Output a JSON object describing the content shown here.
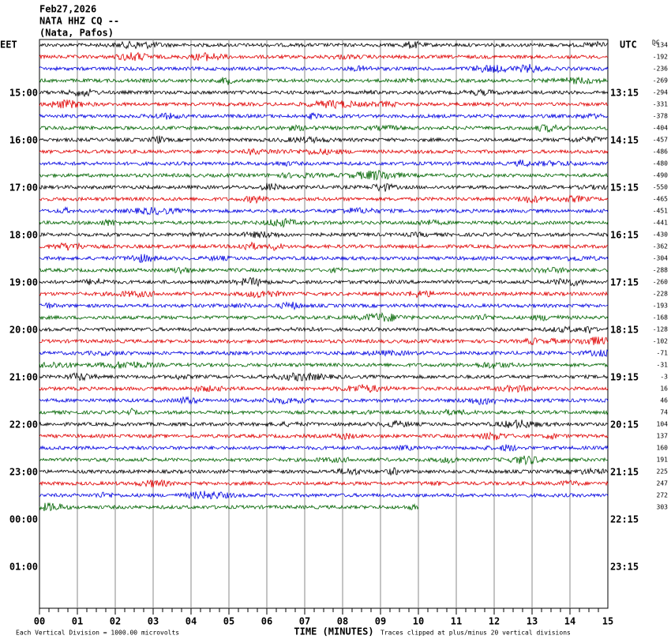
{
  "header": {
    "date": "Feb27,2026",
    "station": "NATA HHZ CQ --",
    "location": "(Nata, Pafos)"
  },
  "left_axis": {
    "title": "EET",
    "labels": [
      "15:00",
      "16:00",
      "17:00",
      "18:00",
      "19:00",
      "20:00",
      "21:00",
      "22:00",
      "23:00",
      "00:00",
      "01:00"
    ]
  },
  "right_axis": {
    "title": "UTC",
    "labels": [
      "13:15",
      "14:15",
      "15:15",
      "16:15",
      "17:15",
      "18:15",
      "19:15",
      "20:15",
      "21:15",
      "22:15",
      "23:15"
    ]
  },
  "dc_title": "DC",
  "dc_offsets": [
    -134,
    -192,
    -236,
    -269,
    -294,
    -331,
    -378,
    -404,
    -457,
    -486,
    -480,
    -490,
    -550,
    -465,
    -451,
    -441,
    -430,
    -362,
    -304,
    -288,
    -260,
    -228,
    -193,
    -168,
    -128,
    -102,
    -71,
    -31,
    -3,
    16,
    46,
    74,
    104,
    137,
    160,
    191,
    225,
    247,
    272,
    303
  ],
  "trace_colors": [
    "#000000",
    "#e00000",
    "#0000e0",
    "#006400"
  ],
  "x_axis": {
    "title": "TIME (MINUTES)",
    "tick_labels": [
      "00",
      "01",
      "02",
      "03",
      "04",
      "05",
      "06",
      "07",
      "08",
      "09",
      "10",
      "11",
      "12",
      "13",
      "14",
      "15"
    ]
  },
  "footer": {
    "scale": "Each Vertical Division = 1000.00 microvolts",
    "clip": "Traces clipped at plus/minus 20 vertical divisions"
  }
}
